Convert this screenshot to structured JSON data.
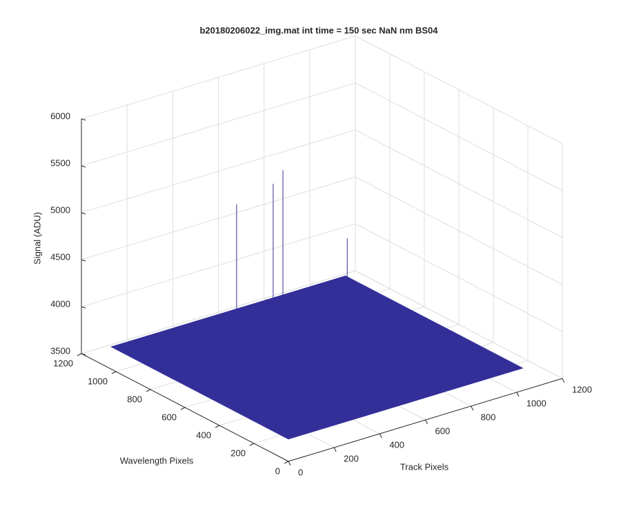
{
  "chart_data": {
    "type": "surface",
    "title": "b20180206022_img.mat int time = 150 sec  NaN nm BS04",
    "x_label": "Track Pixels",
    "y_label": "Wavelength Pixels",
    "z_label": "Signal (ADU)",
    "xlim": [
      0,
      1200
    ],
    "xticks": [
      0,
      200,
      400,
      600,
      800,
      1000,
      1200
    ],
    "ylim": [
      0,
      1200
    ],
    "yticks": [
      0,
      200,
      400,
      600,
      800,
      1000,
      1200
    ],
    "zlim": [
      3500,
      6000
    ],
    "zticks": [
      3500,
      4000,
      4500,
      5000,
      5500,
      6000
    ],
    "grid": true,
    "surface": {
      "extent": [
        1024,
        1024
      ],
      "level": 3740,
      "color": "#332f99"
    },
    "spikes": [
      {
        "x": 200,
        "y": 565,
        "z": 5550
      },
      {
        "x": 500,
        "y": 750,
        "z": 5370
      },
      {
        "x": 520,
        "y": 720,
        "z": 5530
      },
      {
        "x": 900,
        "y": 850,
        "z": 4400
      }
    ]
  }
}
